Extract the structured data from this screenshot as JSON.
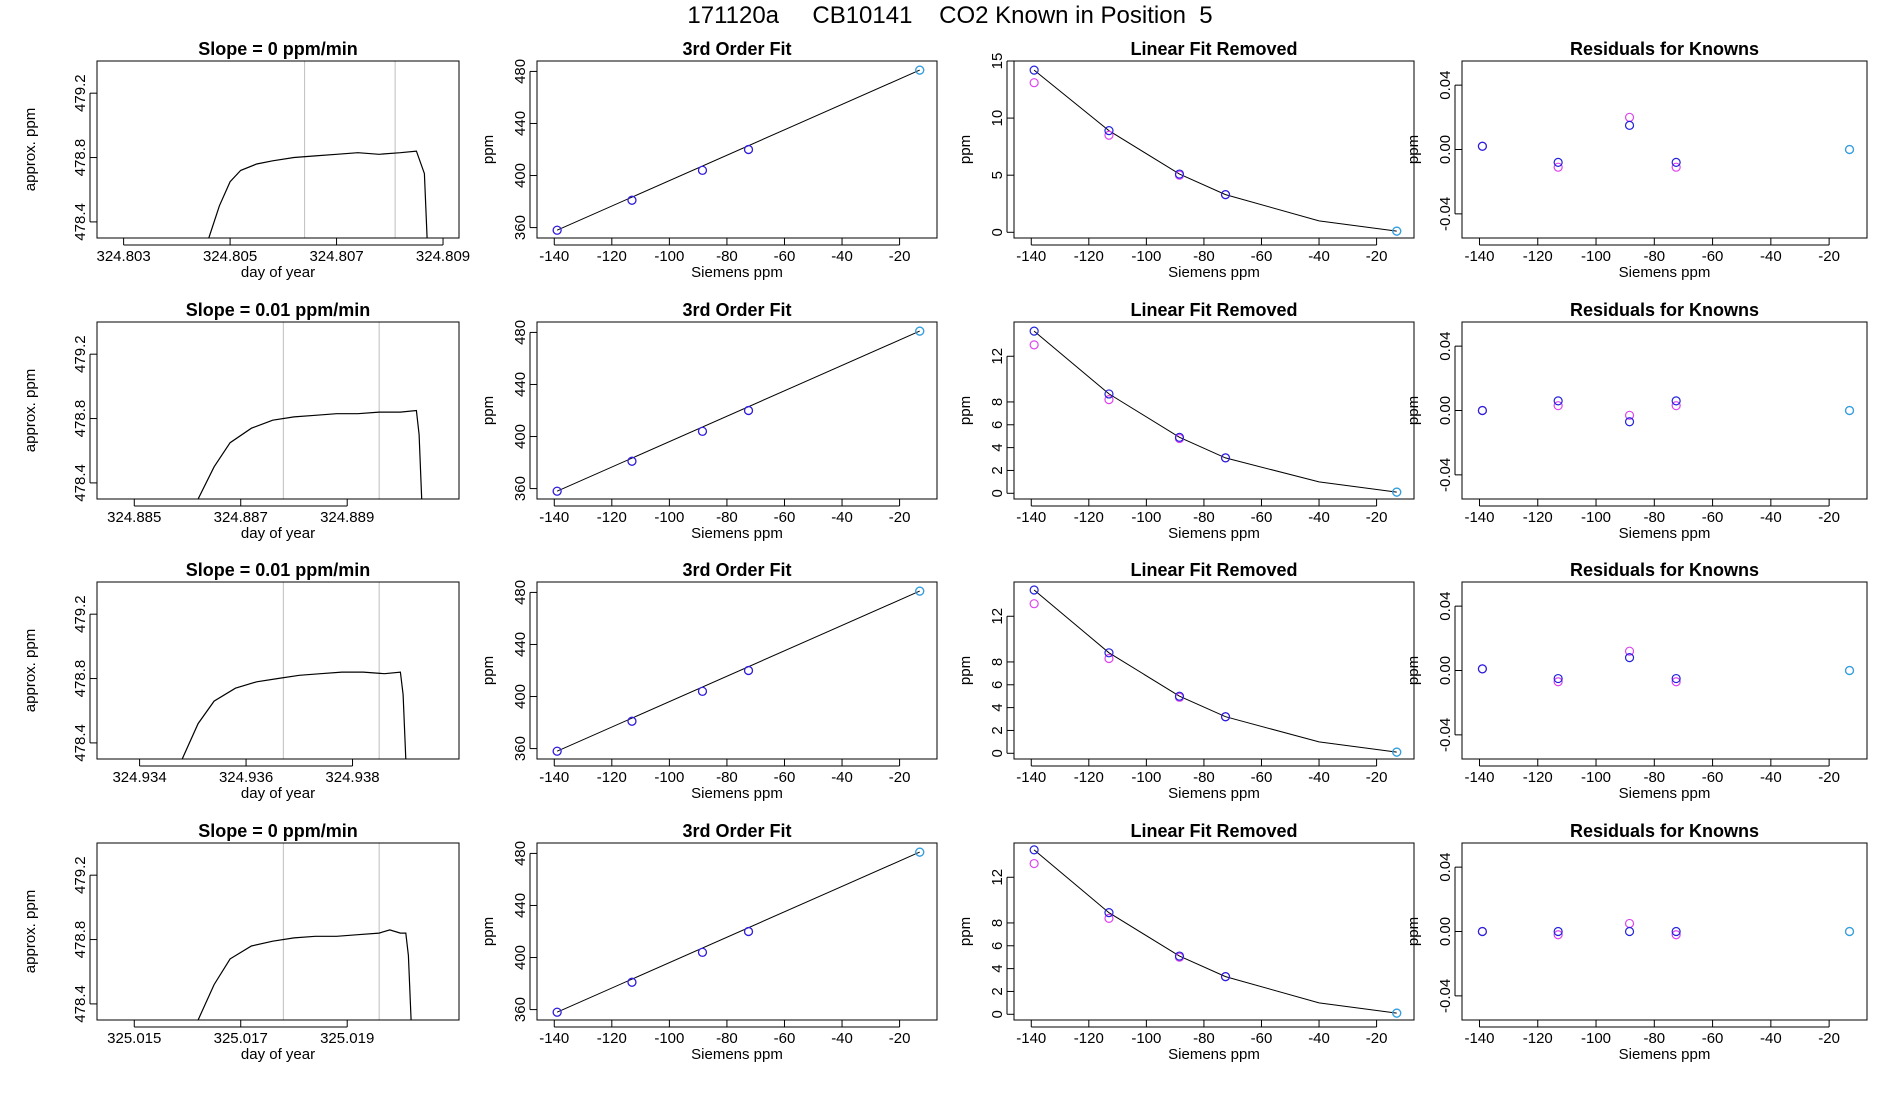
{
  "figure_title": "171120a     CB10141    CO2 Known in Position  5",
  "colors": {
    "trace": "#000000",
    "gridline": "#bebebe",
    "point_magenta": "#dd44ee",
    "point_blue": "#2222dd",
    "point_cyan": "#22aadd",
    "fit_line": "#000000"
  },
  "chart_data": [
    {
      "type": "line",
      "panel": "time",
      "row": 1,
      "title": "Slope =  0  ppm/min",
      "xlabel": "day of year",
      "ylabel": "approx. ppm",
      "xlim": [
        324.8025,
        324.8093
      ],
      "ylim": [
        478.3,
        479.4
      ],
      "xticks": [
        "324.803",
        "324.805",
        "324.807",
        "324.809"
      ],
      "yticks": [
        "478.4",
        "478.8",
        "479.2"
      ],
      "vlines": [
        324.8064,
        324.8081
      ],
      "series": [
        {
          "x": [
            324.8046,
            324.8048,
            324.805,
            324.8052,
            324.8055,
            324.8058,
            324.8062,
            324.8066,
            324.807,
            324.8074,
            324.8078,
            324.8082,
            324.8085,
            324.80865,
            324.8087
          ],
          "values": [
            478.3,
            478.5,
            478.65,
            478.72,
            478.76,
            478.78,
            478.8,
            478.81,
            478.82,
            478.83,
            478.82,
            478.83,
            478.84,
            478.7,
            478.3
          ]
        }
      ]
    },
    {
      "type": "scatter",
      "panel": "fit",
      "row": 1,
      "title": "3rd Order Fit",
      "xlabel": "Siemens ppm",
      "ylabel": "ppm",
      "xlim": [
        -146,
        -7
      ],
      "ylim": [
        352,
        488
      ],
      "xticks": [
        "-140",
        "-120",
        "-100",
        "-80",
        "-60",
        "-40",
        "-20"
      ],
      "yticks": [
        "360",
        "400",
        "440",
        "480"
      ],
      "x": [
        -139,
        -113,
        -88.5,
        -72.5,
        -13
      ],
      "series": [
        {
          "values": [
            358,
            381,
            404,
            420,
            481
          ]
        },
        {
          "values": [
            358,
            381,
            404,
            420,
            481
          ]
        }
      ],
      "fit": {
        "x": [
          -139,
          -13
        ],
        "values": [
          358,
          481
        ]
      }
    },
    {
      "type": "scatter",
      "panel": "linear_removed",
      "row": 1,
      "title": "Linear Fit Removed",
      "xlabel": "Siemens ppm",
      "ylabel": "ppm",
      "xlim": [
        -146,
        -7
      ],
      "ylim": [
        -0.5,
        15
      ],
      "xticks": [
        "-140",
        "-120",
        "-100",
        "-80",
        "-60",
        "-40",
        "-20"
      ],
      "yticks": [
        "0",
        "5",
        "10",
        "15"
      ],
      "x": [
        -139,
        -113,
        -88.5,
        -72.5,
        -13
      ],
      "series": [
        {
          "values": [
            13.1,
            8.5,
            5.0,
            3.3,
            0.1
          ]
        },
        {
          "values": [
            14.2,
            8.9,
            5.1,
            3.3,
            0.1
          ]
        }
      ],
      "fit": {
        "x": [
          -139,
          -113,
          -88.5,
          -72.5,
          -40,
          -13
        ],
        "values": [
          14.2,
          8.9,
          5.1,
          3.3,
          1.0,
          0.1
        ]
      }
    },
    {
      "type": "scatter",
      "panel": "residuals",
      "row": 1,
      "title": "Residuals for Knowns",
      "xlabel": "Siemens ppm",
      "ylabel": "ppm",
      "xlim": [
        -146,
        -7
      ],
      "ylim": [
        -0.055,
        0.055
      ],
      "xticks": [
        "-140",
        "-120",
        "-100",
        "-80",
        "-60",
        "-40",
        "-20"
      ],
      "yticks": [
        "-0.04",
        "0.00",
        "0.04"
      ],
      "x": [
        -139,
        -113,
        -88.5,
        -72.5,
        -13
      ],
      "series": [
        {
          "values": [
            0.002,
            -0.011,
            0.02,
            -0.011,
            0.0
          ]
        },
        {
          "values": [
            0.002,
            -0.008,
            0.015,
            -0.008,
            0.0
          ]
        }
      ]
    },
    {
      "type": "line",
      "panel": "time",
      "row": 2,
      "title": "Slope =  0.01  ppm/min",
      "xlabel": "day of year",
      "ylabel": "approx. ppm",
      "xlim": [
        324.8843,
        324.8911
      ],
      "ylim": [
        478.3,
        479.4
      ],
      "xticks": [
        "324.885",
        "324.887",
        "324.889"
      ],
      "yticks": [
        "478.4",
        "478.8",
        "479.2"
      ],
      "vlines": [
        324.8878,
        324.8896
      ],
      "series": [
        {
          "x": [
            324.8862,
            324.8865,
            324.8868,
            324.8872,
            324.8876,
            324.888,
            324.8884,
            324.8888,
            324.8892,
            324.8896,
            324.89,
            324.8903,
            324.89035,
            324.8904
          ],
          "values": [
            478.3,
            478.5,
            478.65,
            478.74,
            478.79,
            478.81,
            478.82,
            478.83,
            478.83,
            478.84,
            478.84,
            478.85,
            478.7,
            478.3
          ]
        }
      ]
    },
    {
      "type": "scatter",
      "panel": "fit",
      "row": 2,
      "title": "3rd Order Fit",
      "xlabel": "Siemens ppm",
      "ylabel": "ppm",
      "xlim": [
        -146,
        -7
      ],
      "ylim": [
        352,
        488
      ],
      "xticks": [
        "-140",
        "-120",
        "-100",
        "-80",
        "-60",
        "-40",
        "-20"
      ],
      "yticks": [
        "360",
        "400",
        "440",
        "480"
      ],
      "x": [
        -139,
        -113,
        -88.5,
        -72.5,
        -13
      ],
      "series": [
        {
          "values": [
            358,
            381,
            404,
            420,
            481
          ]
        },
        {
          "values": [
            358,
            381,
            404,
            420,
            481
          ]
        }
      ],
      "fit": {
        "x": [
          -139,
          -13
        ],
        "values": [
          358,
          481
        ]
      }
    },
    {
      "type": "scatter",
      "panel": "linear_removed",
      "row": 2,
      "title": "Linear Fit Removed",
      "xlabel": "Siemens ppm",
      "ylabel": "ppm",
      "xlim": [
        -146,
        -7
      ],
      "ylim": [
        -0.5,
        15
      ],
      "xticks": [
        "-140",
        "-120",
        "-100",
        "-80",
        "-60",
        "-40",
        "-20"
      ],
      "yticks": [
        "0",
        "2",
        "4",
        "6",
        "8",
        "12"
      ],
      "x": [
        -139,
        -113,
        -88.5,
        -72.5,
        -13
      ],
      "series": [
        {
          "values": [
            13.0,
            8.2,
            4.8,
            3.1,
            0.1
          ]
        },
        {
          "values": [
            14.2,
            8.7,
            4.9,
            3.1,
            0.1
          ]
        }
      ],
      "fit": {
        "x": [
          -139,
          -113,
          -88.5,
          -72.5,
          -40,
          -13
        ],
        "values": [
          14.2,
          8.7,
          4.9,
          3.1,
          1.0,
          0.1
        ]
      }
    },
    {
      "type": "scatter",
      "panel": "residuals",
      "row": 2,
      "title": "Residuals for Knowns",
      "xlabel": "Siemens ppm",
      "ylabel": "ppm",
      "xlim": [
        -146,
        -7
      ],
      "ylim": [
        -0.055,
        0.055
      ],
      "xticks": [
        "-140",
        "-120",
        "-100",
        "-80",
        "-60",
        "-40",
        "-20"
      ],
      "yticks": [
        "-0.04",
        "0.00",
        "0.04"
      ],
      "x": [
        -139,
        -113,
        -88.5,
        -72.5,
        -13
      ],
      "series": [
        {
          "values": [
            0.0,
            0.003,
            -0.003,
            0.003,
            0.0
          ]
        },
        {
          "values": [
            0.0,
            0.006,
            -0.007,
            0.006,
            0.0
          ]
        }
      ]
    },
    {
      "type": "line",
      "panel": "time",
      "row": 3,
      "title": "Slope =  0.01  ppm/min",
      "xlabel": "day of year",
      "ylabel": "approx. ppm",
      "xlim": [
        324.9332,
        324.94
      ],
      "ylim": [
        478.3,
        479.4
      ],
      "xticks": [
        "324.934",
        "324.936",
        "324.938"
      ],
      "yticks": [
        "478.4",
        "478.8",
        "479.2"
      ],
      "vlines": [
        324.9367,
        324.9385
      ],
      "series": [
        {
          "x": [
            324.9348,
            324.9351,
            324.9354,
            324.9358,
            324.9362,
            324.9366,
            324.937,
            324.9374,
            324.9378,
            324.9382,
            324.9386,
            324.9389,
            324.93895,
            324.939
          ],
          "values": [
            478.3,
            478.52,
            478.66,
            478.74,
            478.78,
            478.8,
            478.82,
            478.83,
            478.84,
            478.84,
            478.83,
            478.84,
            478.7,
            478.3
          ]
        }
      ]
    },
    {
      "type": "scatter",
      "panel": "fit",
      "row": 3,
      "title": "3rd Order Fit",
      "xlabel": "Siemens ppm",
      "ylabel": "ppm",
      "xlim": [
        -146,
        -7
      ],
      "ylim": [
        352,
        488
      ],
      "xticks": [
        "-140",
        "-120",
        "-100",
        "-80",
        "-60",
        "-40",
        "-20"
      ],
      "yticks": [
        "360",
        "400",
        "440",
        "480"
      ],
      "x": [
        -139,
        -113,
        -88.5,
        -72.5,
        -13
      ],
      "series": [
        {
          "values": [
            358,
            381,
            404,
            420,
            481
          ]
        },
        {
          "values": [
            358,
            381,
            404,
            420,
            481
          ]
        }
      ],
      "fit": {
        "x": [
          -139,
          -13
        ],
        "values": [
          358,
          481
        ]
      }
    },
    {
      "type": "scatter",
      "panel": "linear_removed",
      "row": 3,
      "title": "Linear Fit Removed",
      "xlabel": "Siemens ppm",
      "ylabel": "ppm",
      "xlim": [
        -146,
        -7
      ],
      "ylim": [
        -0.5,
        15
      ],
      "xticks": [
        "-140",
        "-120",
        "-100",
        "-80",
        "-60",
        "-40",
        "-20"
      ],
      "yticks": [
        "0",
        "2",
        "4",
        "6",
        "8",
        "12"
      ],
      "x": [
        -139,
        -113,
        -88.5,
        -72.5,
        -13
      ],
      "series": [
        {
          "values": [
            13.1,
            8.3,
            4.9,
            3.2,
            0.1
          ]
        },
        {
          "values": [
            14.3,
            8.8,
            5.0,
            3.2,
            0.1
          ]
        }
      ],
      "fit": {
        "x": [
          -139,
          -113,
          -88.5,
          -72.5,
          -40,
          -13
        ],
        "values": [
          14.3,
          8.8,
          5.0,
          3.2,
          1.0,
          0.1
        ]
      }
    },
    {
      "type": "scatter",
      "panel": "residuals",
      "row": 3,
      "title": "Residuals for Knowns",
      "xlabel": "Siemens ppm",
      "ylabel": "ppm",
      "xlim": [
        -146,
        -7
      ],
      "ylim": [
        -0.055,
        0.055
      ],
      "xticks": [
        "-140",
        "-120",
        "-100",
        "-80",
        "-60",
        "-40",
        "-20"
      ],
      "yticks": [
        "-0.04",
        "0.00",
        "0.04"
      ],
      "x": [
        -139,
        -113,
        -88.5,
        -72.5,
        -13
      ],
      "series": [
        {
          "values": [
            0.001,
            -0.007,
            0.012,
            -0.007,
            0.0
          ]
        },
        {
          "values": [
            0.001,
            -0.005,
            0.008,
            -0.005,
            0.0
          ]
        }
      ]
    },
    {
      "type": "line",
      "panel": "time",
      "row": 4,
      "title": "Slope =  0  ppm/min",
      "xlabel": "day of year",
      "ylabel": "approx. ppm",
      "xlim": [
        325.0143,
        325.0211
      ],
      "ylim": [
        478.3,
        479.4
      ],
      "xticks": [
        "325.015",
        "325.017",
        "325.019"
      ],
      "yticks": [
        "478.4",
        "478.8",
        "479.2"
      ],
      "vlines": [
        325.0178,
        325.0196
      ],
      "series": [
        {
          "x": [
            325.0162,
            325.0165,
            325.0168,
            325.0172,
            325.0176,
            325.018,
            325.0184,
            325.0188,
            325.0192,
            325.0196,
            325.0198,
            325.02,
            325.0201,
            325.02015,
            325.0202
          ],
          "values": [
            478.3,
            478.52,
            478.68,
            478.76,
            478.79,
            478.81,
            478.82,
            478.82,
            478.83,
            478.84,
            478.86,
            478.84,
            478.84,
            478.7,
            478.3
          ]
        }
      ]
    },
    {
      "type": "scatter",
      "panel": "fit",
      "row": 4,
      "title": "3rd Order Fit",
      "xlabel": "Siemens ppm",
      "ylabel": "ppm",
      "xlim": [
        -146,
        -7
      ],
      "ylim": [
        352,
        488
      ],
      "xticks": [
        "-140",
        "-120",
        "-100",
        "-80",
        "-60",
        "-40",
        "-20"
      ],
      "yticks": [
        "360",
        "400",
        "440",
        "480"
      ],
      "x": [
        -139,
        -113,
        -88.5,
        -72.5,
        -13
      ],
      "series": [
        {
          "values": [
            358,
            381,
            404,
            420,
            481
          ]
        },
        {
          "values": [
            358,
            381,
            404,
            420,
            481
          ]
        }
      ],
      "fit": {
        "x": [
          -139,
          -13
        ],
        "values": [
          358,
          481
        ]
      }
    },
    {
      "type": "scatter",
      "panel": "linear_removed",
      "row": 4,
      "title": "Linear Fit Removed",
      "xlabel": "Siemens ppm",
      "ylabel": "ppm",
      "xlim": [
        -146,
        -7
      ],
      "ylim": [
        -0.5,
        15
      ],
      "xticks": [
        "-140",
        "-120",
        "-100",
        "-80",
        "-60",
        "-40",
        "-20"
      ],
      "yticks": [
        "0",
        "2",
        "4",
        "6",
        "8",
        "12"
      ],
      "x": [
        -139,
        -113,
        -88.5,
        -72.5,
        -13
      ],
      "series": [
        {
          "values": [
            13.2,
            8.4,
            5.0,
            3.3,
            0.1
          ]
        },
        {
          "values": [
            14.4,
            8.9,
            5.1,
            3.3,
            0.1
          ]
        }
      ],
      "fit": {
        "x": [
          -139,
          -113,
          -88.5,
          -72.5,
          -40,
          -13
        ],
        "values": [
          14.4,
          8.9,
          5.1,
          3.3,
          1.0,
          0.1
        ]
      }
    },
    {
      "type": "scatter",
      "panel": "residuals",
      "row": 4,
      "title": "Residuals for Knowns",
      "xlabel": "Siemens ppm",
      "ylabel": "ppm",
      "xlim": [
        -146,
        -7
      ],
      "ylim": [
        -0.055,
        0.055
      ],
      "xticks": [
        "-140",
        "-120",
        "-100",
        "-80",
        "-60",
        "-40",
        "-20"
      ],
      "yticks": [
        "-0.04",
        "0.00",
        "0.04"
      ],
      "x": [
        -139,
        -113,
        -88.5,
        -72.5,
        -13
      ],
      "series": [
        {
          "values": [
            0.0,
            -0.002,
            0.005,
            -0.002,
            0.0
          ]
        },
        {
          "values": [
            0.0,
            0.0,
            0.0,
            0.0,
            0.0
          ]
        }
      ]
    }
  ]
}
